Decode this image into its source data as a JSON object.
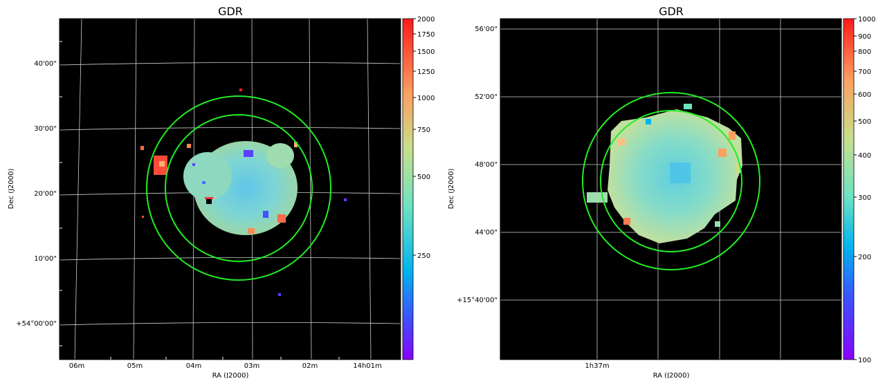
{
  "panels": [
    {
      "title": "GDR",
      "xlabel": "RA (J2000)",
      "ylabel": "Dec (J2000)",
      "x_ticks": [
        "06m",
        "05m",
        "04m",
        "03m",
        "02m",
        "14h01m"
      ],
      "y_ticks": [
        "40'00\"",
        "30'00\"",
        "20'00\"",
        "10'00\"",
        "+54°00'00\""
      ],
      "colorbar": {
        "ticks": [
          "2000",
          "1750",
          "1500",
          "1250",
          "1000",
          "750",
          "500",
          "250"
        ]
      }
    },
    {
      "title": "GDR",
      "xlabel": "RA (J2000)",
      "ylabel": "Dec (J2000)",
      "x_ticks": [
        "1h37m"
      ],
      "y_ticks": [
        "56'00\"",
        "52'00\"",
        "48'00\"",
        "44'00\"",
        "+15°40'00\""
      ],
      "colorbar": {
        "ticks": [
          "1000",
          "900",
          "800",
          "700",
          "600",
          "500",
          "400",
          "300",
          "200",
          "100"
        ]
      }
    }
  ],
  "colors": {
    "ring": "#22ee22",
    "background": "#000000",
    "grid": "#cfcfcf"
  }
}
